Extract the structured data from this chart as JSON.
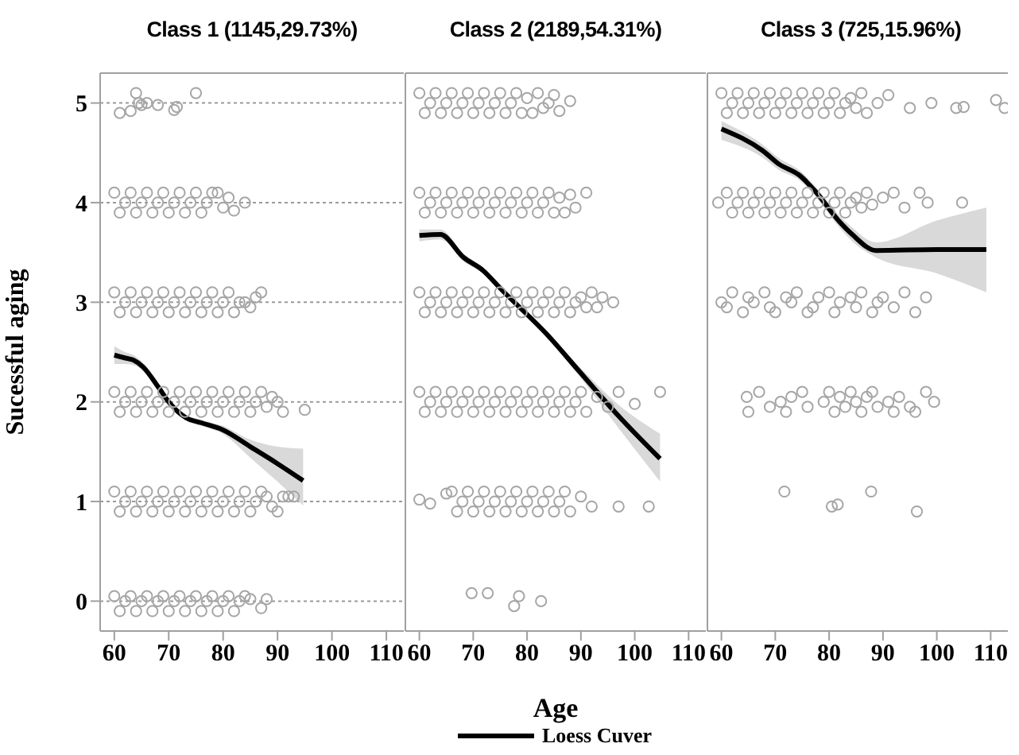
{
  "chart_data": [
    {
      "type": "scatter",
      "title": "Class 1 (1145,29.73%)",
      "ylabel": "Sucessful aging",
      "xlim": [
        57.4,
        113.2
      ],
      "ylim": [
        -0.3,
        5.3
      ],
      "xticks": [
        60,
        70,
        80,
        90,
        100,
        110
      ],
      "yticks": [
        0,
        1,
        2,
        3,
        4,
        5
      ],
      "grid": "y",
      "marker": "circle",
      "series": [
        {
          "type": "scatter",
          "color": "#a6a6a6",
          "x": [
            61,
            63,
            64,
            64.5,
            65,
            66,
            68,
            71,
            71.5,
            75,
            60,
            61,
            62,
            63,
            64,
            65,
            66,
            67,
            68,
            69,
            70,
            71,
            72,
            73,
            74,
            75,
            76,
            77,
            78,
            79,
            80,
            81,
            82,
            84,
            60,
            61,
            62,
            63,
            64,
            65,
            66,
            67,
            68,
            69,
            70,
            71,
            72,
            73,
            74,
            75,
            76,
            77,
            78,
            79,
            80,
            81,
            82,
            83,
            84,
            85,
            86,
            87,
            60,
            61,
            62,
            63,
            64,
            65,
            66,
            67,
            68,
            69,
            70,
            71,
            72,
            73,
            74,
            75,
            76,
            77,
            78,
            79,
            80,
            81,
            82,
            83,
            84,
            85,
            86,
            87,
            88,
            89,
            90,
            91,
            95,
            60,
            61,
            62,
            63,
            64,
            65,
            66,
            67,
            68,
            69,
            70,
            71,
            72,
            73,
            74,
            75,
            76,
            77,
            78,
            79,
            80,
            81,
            82,
            83,
            84,
            85,
            86,
            87,
            88,
            89,
            90,
            91,
            92,
            93,
            60,
            61,
            62,
            63,
            64,
            65,
            66,
            67,
            68,
            69,
            70,
            71,
            72,
            73,
            74,
            75,
            76,
            77,
            78,
            79,
            80,
            81,
            82,
            83,
            84,
            85,
            87,
            88
          ],
          "values": [
            4.9,
            4.92,
            5.1,
            5.0,
            4.98,
            5.0,
            4.98,
            4.93,
            4.96,
            5.1,
            4.1,
            3.9,
            4.0,
            4.1,
            3.9,
            4.0,
            4.1,
            3.9,
            4.0,
            4.1,
            3.9,
            4.0,
            4.1,
            3.9,
            4.0,
            4.1,
            3.9,
            4.0,
            4.1,
            4.1,
            3.95,
            4.05,
            3.92,
            4.0,
            3.1,
            2.9,
            3.0,
            3.1,
            2.9,
            3.0,
            3.1,
            2.9,
            3.0,
            3.1,
            2.9,
            3.0,
            3.1,
            2.9,
            3.0,
            3.1,
            2.9,
            3.0,
            3.1,
            2.9,
            3.0,
            3.1,
            2.9,
            3.0,
            3.0,
            2.95,
            3.05,
            3.1,
            2.1,
            1.9,
            2.0,
            2.1,
            1.9,
            2.0,
            2.1,
            1.9,
            2.0,
            2.1,
            1.9,
            2.0,
            2.1,
            1.9,
            2.0,
            2.1,
            1.9,
            2.0,
            2.1,
            1.9,
            2.0,
            2.1,
            1.9,
            2.0,
            2.1,
            1.9,
            2.0,
            2.1,
            1.95,
            2.05,
            2.0,
            1.9,
            1.92,
            1.1,
            0.9,
            1.0,
            1.1,
            0.9,
            1.0,
            1.1,
            0.9,
            1.0,
            1.1,
            0.9,
            1.0,
            1.1,
            0.9,
            1.0,
            1.1,
            0.9,
            1.0,
            1.1,
            0.9,
            1.0,
            1.1,
            0.9,
            1.0,
            1.1,
            0.9,
            1.0,
            1.1,
            1.05,
            0.95,
            0.9,
            1.05,
            1.05,
            1.05,
            0.05,
            -0.1,
            0.0,
            0.05,
            -0.1,
            0.0,
            0.05,
            -0.1,
            0.0,
            0.05,
            -0.1,
            0.0,
            0.05,
            -0.1,
            0.0,
            0.05,
            -0.1,
            0.0,
            0.05,
            -0.1,
            0.0,
            0.05,
            -0.1,
            0.0,
            0.05,
            0.02,
            -0.07,
            0.02
          ]
        },
        {
          "type": "line",
          "color": "#000000",
          "marker": "none",
          "x": [
            60,
            62,
            63.5,
            65.3,
            68.2,
            70,
            73.2,
            76,
            79.9,
            85,
            90,
            94.7
          ],
          "values": [
            2.47,
            2.44,
            2.42,
            2.35,
            2.14,
            2.0,
            1.84,
            1.79,
            1.72,
            1.55,
            1.38,
            1.21
          ],
          "lower": [
            2.38,
            2.38,
            2.37,
            2.31,
            2.11,
            1.97,
            1.81,
            1.76,
            1.68,
            1.44,
            1.2,
            0.96
          ],
          "upper": [
            2.56,
            2.5,
            2.47,
            2.39,
            2.17,
            2.03,
            1.87,
            1.82,
            1.76,
            1.62,
            1.55,
            1.53
          ]
        }
      ]
    },
    {
      "type": "scatter",
      "title": "Class 2 (2189,54.31%)",
      "xlabel": "Age",
      "legend": "bottom",
      "tick_labels": "x",
      "xlim": [
        57.4,
        113.2
      ],
      "ylim": [
        -0.3,
        5.3
      ],
      "xticks": [
        60,
        70,
        80,
        90,
        100,
        110
      ],
      "yticks": [
        0,
        1,
        2,
        3,
        4,
        5
      ],
      "grid": "y",
      "marker": "circle",
      "series": [
        {
          "type": "scatter",
          "color": "#a6a6a6",
          "x": [
            60,
            61,
            62,
            63,
            64,
            65,
            66,
            67,
            68,
            69,
            70,
            71,
            72,
            73,
            74,
            75,
            76,
            77,
            78,
            79,
            80,
            81,
            82,
            83,
            84,
            85,
            86,
            88,
            60,
            61,
            62,
            63,
            64,
            65,
            66,
            67,
            68,
            69,
            70,
            71,
            72,
            73,
            74,
            75,
            76,
            77,
            78,
            79,
            80,
            81,
            82,
            83,
            84,
            85,
            86,
            87,
            88,
            89,
            91,
            60,
            61,
            62,
            63,
            64,
            65,
            66,
            67,
            68,
            69,
            70,
            71,
            72,
            73,
            74,
            75,
            76,
            77,
            78,
            79,
            80,
            81,
            82,
            83,
            84,
            85,
            86,
            87,
            88,
            89,
            90,
            91,
            92,
            93,
            94,
            96,
            60,
            61,
            62,
            63,
            64,
            65,
            66,
            67,
            68,
            69,
            70,
            71,
            72,
            73,
            74,
            75,
            76,
            77,
            78,
            79,
            80,
            81,
            82,
            83,
            84,
            85,
            86,
            87,
            88,
            89,
            90,
            91,
            93,
            95,
            97,
            100,
            104.7,
            60,
            62,
            65,
            66,
            67,
            68,
            69,
            70,
            71,
            72,
            73,
            74,
            75,
            76,
            77,
            78,
            79,
            80,
            81,
            82,
            83,
            84,
            85,
            86,
            87,
            88,
            90,
            92,
            97,
            102.6,
            69.7,
            72.7,
            77.6,
            78.5,
            82.6
          ],
          "values": [
            5.1,
            4.9,
            5.0,
            5.1,
            4.9,
            5.0,
            5.1,
            4.9,
            5.0,
            5.1,
            4.9,
            5.0,
            5.1,
            4.9,
            5.0,
            5.1,
            4.9,
            5.0,
            5.1,
            4.9,
            5.05,
            4.9,
            5.1,
            4.95,
            5.0,
            5.08,
            4.92,
            5.02,
            4.1,
            3.9,
            4.0,
            4.1,
            3.9,
            4.0,
            4.1,
            3.9,
            4.0,
            4.1,
            3.9,
            4.0,
            4.1,
            3.9,
            4.0,
            4.1,
            3.9,
            4.0,
            4.1,
            3.9,
            4.0,
            4.1,
            3.9,
            4.0,
            4.1,
            3.9,
            4.05,
            3.9,
            4.08,
            3.95,
            4.1,
            3.1,
            2.9,
            3.0,
            3.1,
            2.9,
            3.0,
            3.1,
            2.9,
            3.0,
            3.1,
            2.9,
            3.0,
            3.1,
            2.9,
            3.0,
            3.1,
            2.9,
            3.0,
            3.1,
            2.9,
            3.0,
            3.1,
            2.9,
            3.0,
            3.1,
            2.9,
            3.0,
            3.1,
            2.9,
            3.0,
            3.05,
            2.95,
            3.1,
            2.95,
            3.05,
            3.0,
            2.1,
            1.9,
            2.0,
            2.1,
            1.9,
            2.0,
            2.1,
            1.9,
            2.0,
            2.1,
            1.9,
            2.0,
            2.1,
            1.9,
            2.0,
            2.1,
            1.9,
            2.0,
            2.1,
            1.9,
            2.0,
            2.1,
            1.9,
            2.0,
            2.1,
            1.9,
            2.0,
            2.1,
            1.9,
            2.0,
            2.1,
            1.9,
            2.05,
            1.95,
            2.1,
            1.98,
            2.1,
            1.02,
            0.98,
            1.08,
            1.1,
            0.9,
            1.0,
            1.1,
            0.9,
            1.0,
            1.1,
            0.9,
            1.0,
            1.1,
            0.9,
            1.0,
            1.1,
            0.9,
            1.0,
            1.1,
            0.9,
            1.0,
            1.1,
            0.9,
            1.0,
            1.1,
            0.9,
            1.05,
            0.95,
            0.95,
            0.95,
            0.08,
            0.08,
            -0.05,
            0.05,
            0.0
          ]
        },
        {
          "type": "line",
          "name": "Loess Cuver",
          "color": "#000000",
          "marker": "none",
          "x": [
            60,
            63.9,
            68.2,
            71.8,
            75.2,
            84,
            89.8,
            96.8,
            104.7
          ],
          "values": [
            3.67,
            3.68,
            3.45,
            3.32,
            3.13,
            2.66,
            2.3,
            1.87,
            1.43
          ],
          "lower": [
            3.61,
            3.63,
            3.41,
            3.29,
            3.1,
            2.63,
            2.25,
            1.75,
            1.2
          ],
          "upper": [
            3.73,
            3.73,
            3.49,
            3.35,
            3.16,
            2.69,
            2.35,
            1.98,
            1.68
          ]
        }
      ]
    },
    {
      "type": "scatter",
      "title": "Class 3 (725,15.96%)",
      "tick_labels": "x",
      "xlim": [
        57.4,
        113.2
      ],
      "ylim": [
        -0.3,
        5.3
      ],
      "xticks": [
        60,
        70,
        80,
        90,
        100,
        110
      ],
      "yticks": [
        0,
        1,
        2,
        3,
        4,
        5
      ],
      "grid": "y",
      "marker": "circle",
      "series": [
        {
          "type": "scatter",
          "color": "#a6a6a6",
          "x": [
            60,
            61,
            62,
            63,
            64,
            65,
            66,
            67,
            68,
            69,
            70,
            71,
            72,
            73,
            74,
            75,
            76,
            77,
            78,
            79,
            80,
            81,
            82,
            83,
            84,
            85,
            86,
            87,
            89,
            91,
            95,
            99,
            103.6,
            105,
            111,
            112.6,
            59.4,
            61,
            62,
            63,
            64,
            65,
            66,
            67,
            68,
            69,
            70,
            71,
            72,
            73,
            74,
            75,
            76,
            77,
            78,
            79,
            80,
            81,
            82,
            83,
            84,
            85,
            86,
            87,
            88,
            90,
            92,
            94,
            96.8,
            98.3,
            104.7,
            60,
            61,
            62,
            64,
            65,
            66,
            68,
            69,
            70,
            72,
            73,
            74,
            76,
            77,
            78,
            80,
            81,
            82,
            84,
            85,
            86,
            88,
            89,
            90,
            92,
            94,
            96,
            98,
            64.7,
            65,
            67,
            69,
            71,
            72,
            73,
            75,
            76,
            79,
            80,
            81,
            82,
            83,
            84,
            85,
            86,
            87,
            88,
            89,
            91,
            92,
            93,
            95,
            96,
            98,
            99.5,
            71.7,
            80.5,
            81.6,
            87.8,
            96.3
          ],
          "values": [
            5.1,
            4.9,
            5.0,
            5.1,
            4.9,
            5.0,
            5.1,
            4.9,
            5.0,
            5.1,
            4.9,
            5.0,
            5.1,
            4.9,
            5.0,
            5.1,
            4.9,
            5.0,
            5.1,
            4.9,
            5.0,
            5.1,
            4.9,
            5.0,
            5.05,
            4.95,
            5.1,
            4.9,
            5.0,
            5.08,
            4.95,
            5.0,
            4.95,
            4.96,
            5.03,
            4.95,
            4.0,
            4.1,
            3.9,
            4.0,
            4.1,
            3.9,
            4.0,
            4.1,
            3.9,
            4.0,
            4.1,
            3.9,
            4.0,
            4.1,
            3.9,
            4.0,
            4.1,
            3.9,
            4.0,
            4.1,
            3.9,
            4.0,
            4.1,
            3.9,
            4.0,
            4.05,
            3.95,
            4.1,
            3.98,
            4.05,
            4.1,
            3.95,
            4.1,
            4.0,
            4.0,
            3.0,
            2.95,
            3.1,
            2.9,
            3.05,
            3.0,
            3.1,
            2.95,
            2.9,
            3.05,
            3.0,
            3.1,
            2.9,
            2.95,
            3.05,
            3.1,
            2.9,
            3.0,
            3.05,
            2.95,
            3.1,
            2.9,
            3.0,
            3.05,
            2.95,
            3.1,
            2.9,
            3.05,
            2.05,
            1.9,
            2.1,
            1.95,
            2.0,
            1.9,
            2.05,
            2.1,
            1.95,
            2.0,
            2.1,
            1.9,
            2.05,
            1.95,
            2.1,
            2.0,
            1.9,
            2.05,
            2.1,
            1.95,
            2.0,
            1.9,
            2.05,
            1.95,
            1.9,
            2.1,
            2.0,
            1.1,
            0.95,
            0.97,
            1.1,
            0.9
          ]
        },
        {
          "type": "line",
          "color": "#000000",
          "marker": "none",
          "x": [
            60,
            67.7,
            70.6,
            74.6,
            77.5,
            81.9,
            84.3,
            88.7,
            100,
            109.2
          ],
          "values": [
            4.74,
            4.52,
            4.39,
            4.27,
            4.11,
            3.81,
            3.68,
            3.52,
            3.53,
            3.53
          ],
          "lower": [
            4.63,
            4.45,
            4.33,
            4.22,
            4.06,
            3.75,
            3.61,
            3.45,
            3.29,
            3.1
          ],
          "upper": [
            4.82,
            4.58,
            4.45,
            4.32,
            4.16,
            3.87,
            3.75,
            3.6,
            3.82,
            3.95
          ]
        }
      ]
    }
  ]
}
